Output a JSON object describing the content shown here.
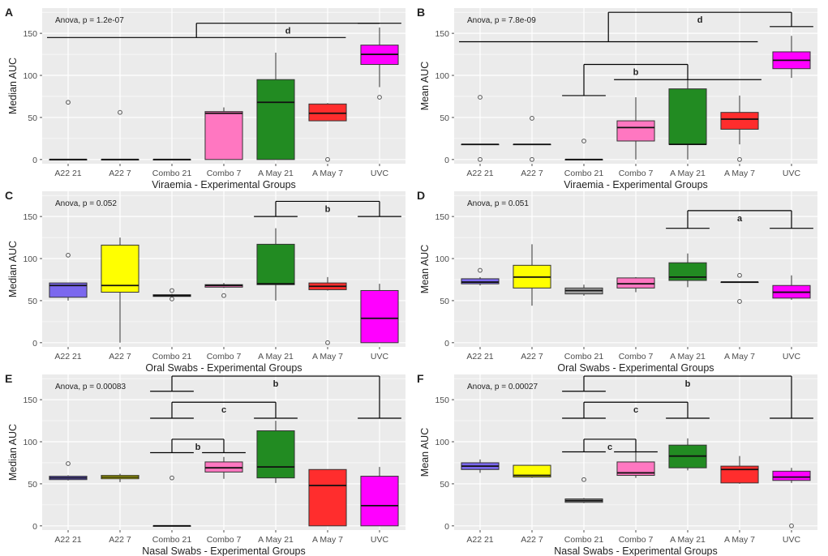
{
  "figure": {
    "colors": {
      "panel_bg": "#ebebeb",
      "grid": "#ffffff",
      "text": "#222222",
      "tick_text": "#4d4d4d",
      "box_outline": "#333333",
      "outlier": "#555555"
    },
    "group_colors": {
      "A22 21": "#7b68ee",
      "A22 7": "#ffff00",
      "Combo 21": "#9e9e9e",
      "Combo 7": "#ff77c1",
      "A May 21": "#228b22",
      "A May 7": "#ff2d2d",
      "UVC": "#ff00ff"
    }
  },
  "chart_data": [
    {
      "panel": "A",
      "type": "box",
      "anova": "Anova, p = 1.2e-07",
      "ylabel": "Median AUC",
      "xlabel": "Viraemia - Experimental Groups",
      "ylim": [
        -5,
        180
      ],
      "yticks": [
        0,
        50,
        100,
        150
      ],
      "categories": [
        "A22 21",
        "A22 7",
        "Combo 21",
        "Combo 7",
        "A May 21",
        "A May 7",
        "UVC"
      ],
      "boxes": [
        {
          "min": 0,
          "q1": 0,
          "median": 0,
          "q3": 0,
          "max": 0,
          "outliers": [
            68
          ]
        },
        {
          "min": 0,
          "q1": 0,
          "median": 0,
          "q3": 0,
          "max": 0,
          "outliers": [
            56
          ]
        },
        {
          "min": 0,
          "q1": 0,
          "median": 0,
          "q3": 0,
          "max": 0,
          "outliers": []
        },
        {
          "min": 0,
          "q1": 0,
          "median": 55,
          "q3": 57,
          "max": 62,
          "outliers": []
        },
        {
          "min": 0,
          "q1": 0,
          "median": 68,
          "q3": 95,
          "max": 127,
          "outliers": []
        },
        {
          "min": 46,
          "q1": 46,
          "median": 55,
          "q3": 66,
          "max": 67,
          "outliers": [
            0
          ]
        },
        {
          "min": 86,
          "q1": 113,
          "median": 125,
          "q3": 136,
          "max": 157,
          "outliers": [
            74
          ]
        }
      ],
      "brackets": [
        {
          "label": "d",
          "from": [
            0,
            1,
            2,
            3,
            4,
            5
          ],
          "to": [
            6
          ],
          "y": 162,
          "left_y": 145,
          "right_y": 162
        }
      ]
    },
    {
      "panel": "B",
      "type": "box",
      "anova": "Anova, p = 7.8e-09",
      "ylabel": "Mean AUC",
      "xlabel": "Viraemia - Experimental Groups",
      "ylim": [
        -5,
        180
      ],
      "yticks": [
        0,
        50,
        100,
        150
      ],
      "categories": [
        "A22 21",
        "A22 7",
        "Combo 21",
        "Combo 7",
        "A May 21",
        "A May 7",
        "UVC"
      ],
      "boxes": [
        {
          "min": 18,
          "q1": 18,
          "median": 18,
          "q3": 18,
          "max": 18,
          "outliers": [
            74,
            0
          ]
        },
        {
          "min": 18,
          "q1": 18,
          "median": 18,
          "q3": 18,
          "max": 18,
          "outliers": [
            49,
            0
          ]
        },
        {
          "min": 0,
          "q1": 0,
          "median": 0,
          "q3": 0,
          "max": 0,
          "outliers": [
            22
          ]
        },
        {
          "min": 0,
          "q1": 22,
          "median": 38,
          "q3": 46,
          "max": 74,
          "outliers": []
        },
        {
          "min": 0,
          "q1": 18,
          "median": 18,
          "q3": 84,
          "max": 107,
          "outliers": []
        },
        {
          "min": 18,
          "q1": 36,
          "median": 48,
          "q3": 56,
          "max": 76,
          "outliers": [
            0
          ]
        },
        {
          "min": 97,
          "q1": 108,
          "median": 118,
          "q3": 128,
          "max": 147,
          "outliers": []
        }
      ],
      "brackets": [
        {
          "label": "d",
          "from": [
            0,
            1,
            2,
            3,
            4,
            5
          ],
          "to": [
            6
          ],
          "y": 175,
          "left_y": 140,
          "right_y": 158
        },
        {
          "label": "b",
          "from": [
            2
          ],
          "to": [
            3,
            4,
            5
          ],
          "y": 113,
          "left_y": 76,
          "right_y": 95
        }
      ]
    },
    {
      "panel": "C",
      "type": "box",
      "anova": "Anova, p = 0.052",
      "ylabel": "Median AUC",
      "xlabel": "Oral Swabs - Experimental Groups",
      "ylim": [
        -5,
        180
      ],
      "yticks": [
        0,
        50,
        100,
        150
      ],
      "categories": [
        "A22 21",
        "A22 7",
        "Combo 21",
        "Combo 7",
        "A May 21",
        "A May 7",
        "UVC"
      ],
      "boxes": [
        {
          "min": 50,
          "q1": 54,
          "median": 68,
          "q3": 71,
          "max": 71,
          "outliers": [
            104
          ]
        },
        {
          "min": 0,
          "q1": 60,
          "median": 68,
          "q3": 116,
          "max": 125,
          "outliers": []
        },
        {
          "min": 55,
          "q1": 55,
          "median": 56,
          "q3": 57,
          "max": 58,
          "outliers": [
            62,
            52
          ]
        },
        {
          "min": 65,
          "q1": 66,
          "median": 68,
          "q3": 69,
          "max": 71,
          "outliers": [
            56
          ]
        },
        {
          "min": 50,
          "q1": 69,
          "median": 70,
          "q3": 117,
          "max": 136,
          "outliers": []
        },
        {
          "min": 62,
          "q1": 63,
          "median": 67,
          "q3": 71,
          "max": 78,
          "outliers": [
            0
          ]
        },
        {
          "min": 0,
          "q1": 0,
          "median": 29,
          "q3": 62,
          "max": 70,
          "outliers": []
        }
      ],
      "brackets": [
        {
          "label": "b",
          "from": [
            4
          ],
          "to": [
            6
          ],
          "y": 168,
          "left_y": 150,
          "right_y": 150
        }
      ]
    },
    {
      "panel": "D",
      "type": "box",
      "anova": "Anova, p = 0.051",
      "ylabel": "Mean AUC",
      "xlabel": "Oral Swabs - Experimental Groups",
      "ylim": [
        -5,
        180
      ],
      "yticks": [
        0,
        50,
        100,
        150
      ],
      "categories": [
        "A22 21",
        "A22 7",
        "Combo 21",
        "Combo 7",
        "A May 21",
        "A May 7",
        "UVC"
      ],
      "boxes": [
        {
          "min": 68,
          "q1": 70,
          "median": 72,
          "q3": 76,
          "max": 78,
          "outliers": [
            86
          ]
        },
        {
          "min": 44,
          "q1": 65,
          "median": 78,
          "q3": 92,
          "max": 117,
          "outliers": []
        },
        {
          "min": 56,
          "q1": 58,
          "median": 62,
          "q3": 65,
          "max": 69,
          "outliers": []
        },
        {
          "min": 60,
          "q1": 65,
          "median": 70,
          "q3": 77,
          "max": 78,
          "outliers": []
        },
        {
          "min": 66,
          "q1": 74,
          "median": 78,
          "q3": 95,
          "max": 106,
          "outliers": []
        },
        {
          "min": 72,
          "q1": 72,
          "median": 72,
          "q3": 72,
          "max": 72,
          "outliers": [
            80,
            49
          ]
        },
        {
          "min": 51,
          "q1": 53,
          "median": 60,
          "q3": 68,
          "max": 80,
          "outliers": []
        }
      ],
      "brackets": [
        {
          "label": "a",
          "from": [
            4
          ],
          "to": [
            6
          ],
          "y": 157,
          "left_y": 136,
          "right_y": 136
        }
      ]
    },
    {
      "panel": "E",
      "type": "box",
      "anova": "Anova, p = 0.00083",
      "ylabel": "Median AUC",
      "xlabel": "Nasal Swabs - Experimental Groups",
      "ylim": [
        -5,
        180
      ],
      "yticks": [
        0,
        50,
        100,
        150
      ],
      "categories": [
        "A22 21",
        "A22 7",
        "Combo 21",
        "Combo 7",
        "A May 21",
        "A May 7",
        "UVC"
      ],
      "boxes": [
        {
          "min": 54,
          "q1": 55,
          "median": 57,
          "q3": 59,
          "max": 60,
          "outliers": [
            74
          ]
        },
        {
          "min": 52,
          "q1": 56,
          "median": 58,
          "q3": 60,
          "max": 62,
          "outliers": []
        },
        {
          "min": 0,
          "q1": 0,
          "median": 0,
          "q3": 0,
          "max": 0,
          "outliers": [
            57
          ]
        },
        {
          "min": 56,
          "q1": 64,
          "median": 69,
          "q3": 76,
          "max": 82,
          "outliers": []
        },
        {
          "min": 51,
          "q1": 57,
          "median": 70,
          "q3": 113,
          "max": 125,
          "outliers": []
        },
        {
          "min": 0,
          "q1": 0,
          "median": 48,
          "q3": 67,
          "max": 67,
          "outliers": []
        },
        {
          "min": 0,
          "q1": 0,
          "median": 24,
          "q3": 59,
          "max": 70,
          "outliers": []
        }
      ],
      "brackets": [
        {
          "label": "b",
          "from": [
            2
          ],
          "to": [
            6
          ],
          "y": 178,
          "left_y": 160,
          "right_y": 128
        },
        {
          "label": "c",
          "from": [
            2
          ],
          "to": [
            4
          ],
          "y": 147,
          "left_y": 128,
          "right_y": 128
        },
        {
          "label": "b",
          "from": [
            2
          ],
          "to": [
            3
          ],
          "y": 103,
          "left_y": 87,
          "right_y": 87
        }
      ]
    },
    {
      "panel": "F",
      "type": "box",
      "anova": "Anova, p = 0.00027",
      "ylabel": "Mean AUC",
      "xlabel": "Nasal Swabs - Experimental Groups",
      "ylim": [
        -5,
        180
      ],
      "yticks": [
        0,
        50,
        100,
        150
      ],
      "categories": [
        "A22 21",
        "A22 7",
        "Combo 21",
        "Combo 7",
        "A May 21",
        "A May 7",
        "UVC"
      ],
      "boxes": [
        {
          "min": 63,
          "q1": 67,
          "median": 71,
          "q3": 75,
          "max": 79,
          "outliers": []
        },
        {
          "min": 57,
          "q1": 58,
          "median": 60,
          "q3": 72,
          "max": 72,
          "outliers": []
        },
        {
          "min": 27,
          "q1": 28,
          "median": 30,
          "q3": 32,
          "max": 33,
          "outliers": [
            55
          ]
        },
        {
          "min": 57,
          "q1": 60,
          "median": 63,
          "q3": 76,
          "max": 88,
          "outliers": []
        },
        {
          "min": 66,
          "q1": 69,
          "median": 83,
          "q3": 96,
          "max": 104,
          "outliers": []
        },
        {
          "min": 50,
          "q1": 51,
          "median": 67,
          "q3": 71,
          "max": 83,
          "outliers": []
        },
        {
          "min": 51,
          "q1": 54,
          "median": 58,
          "q3": 65,
          "max": 69,
          "outliers": [
            0
          ]
        }
      ],
      "brackets": [
        {
          "label": "b",
          "from": [
            2
          ],
          "to": [
            6
          ],
          "y": 178,
          "left_y": 160,
          "right_y": 128
        },
        {
          "label": "c",
          "from": [
            2
          ],
          "to": [
            4
          ],
          "y": 147,
          "left_y": 128,
          "right_y": 128
        },
        {
          "label": "c",
          "from": [
            2
          ],
          "to": [
            3
          ],
          "y": 103,
          "left_y": 88,
          "right_y": 88
        }
      ]
    }
  ]
}
